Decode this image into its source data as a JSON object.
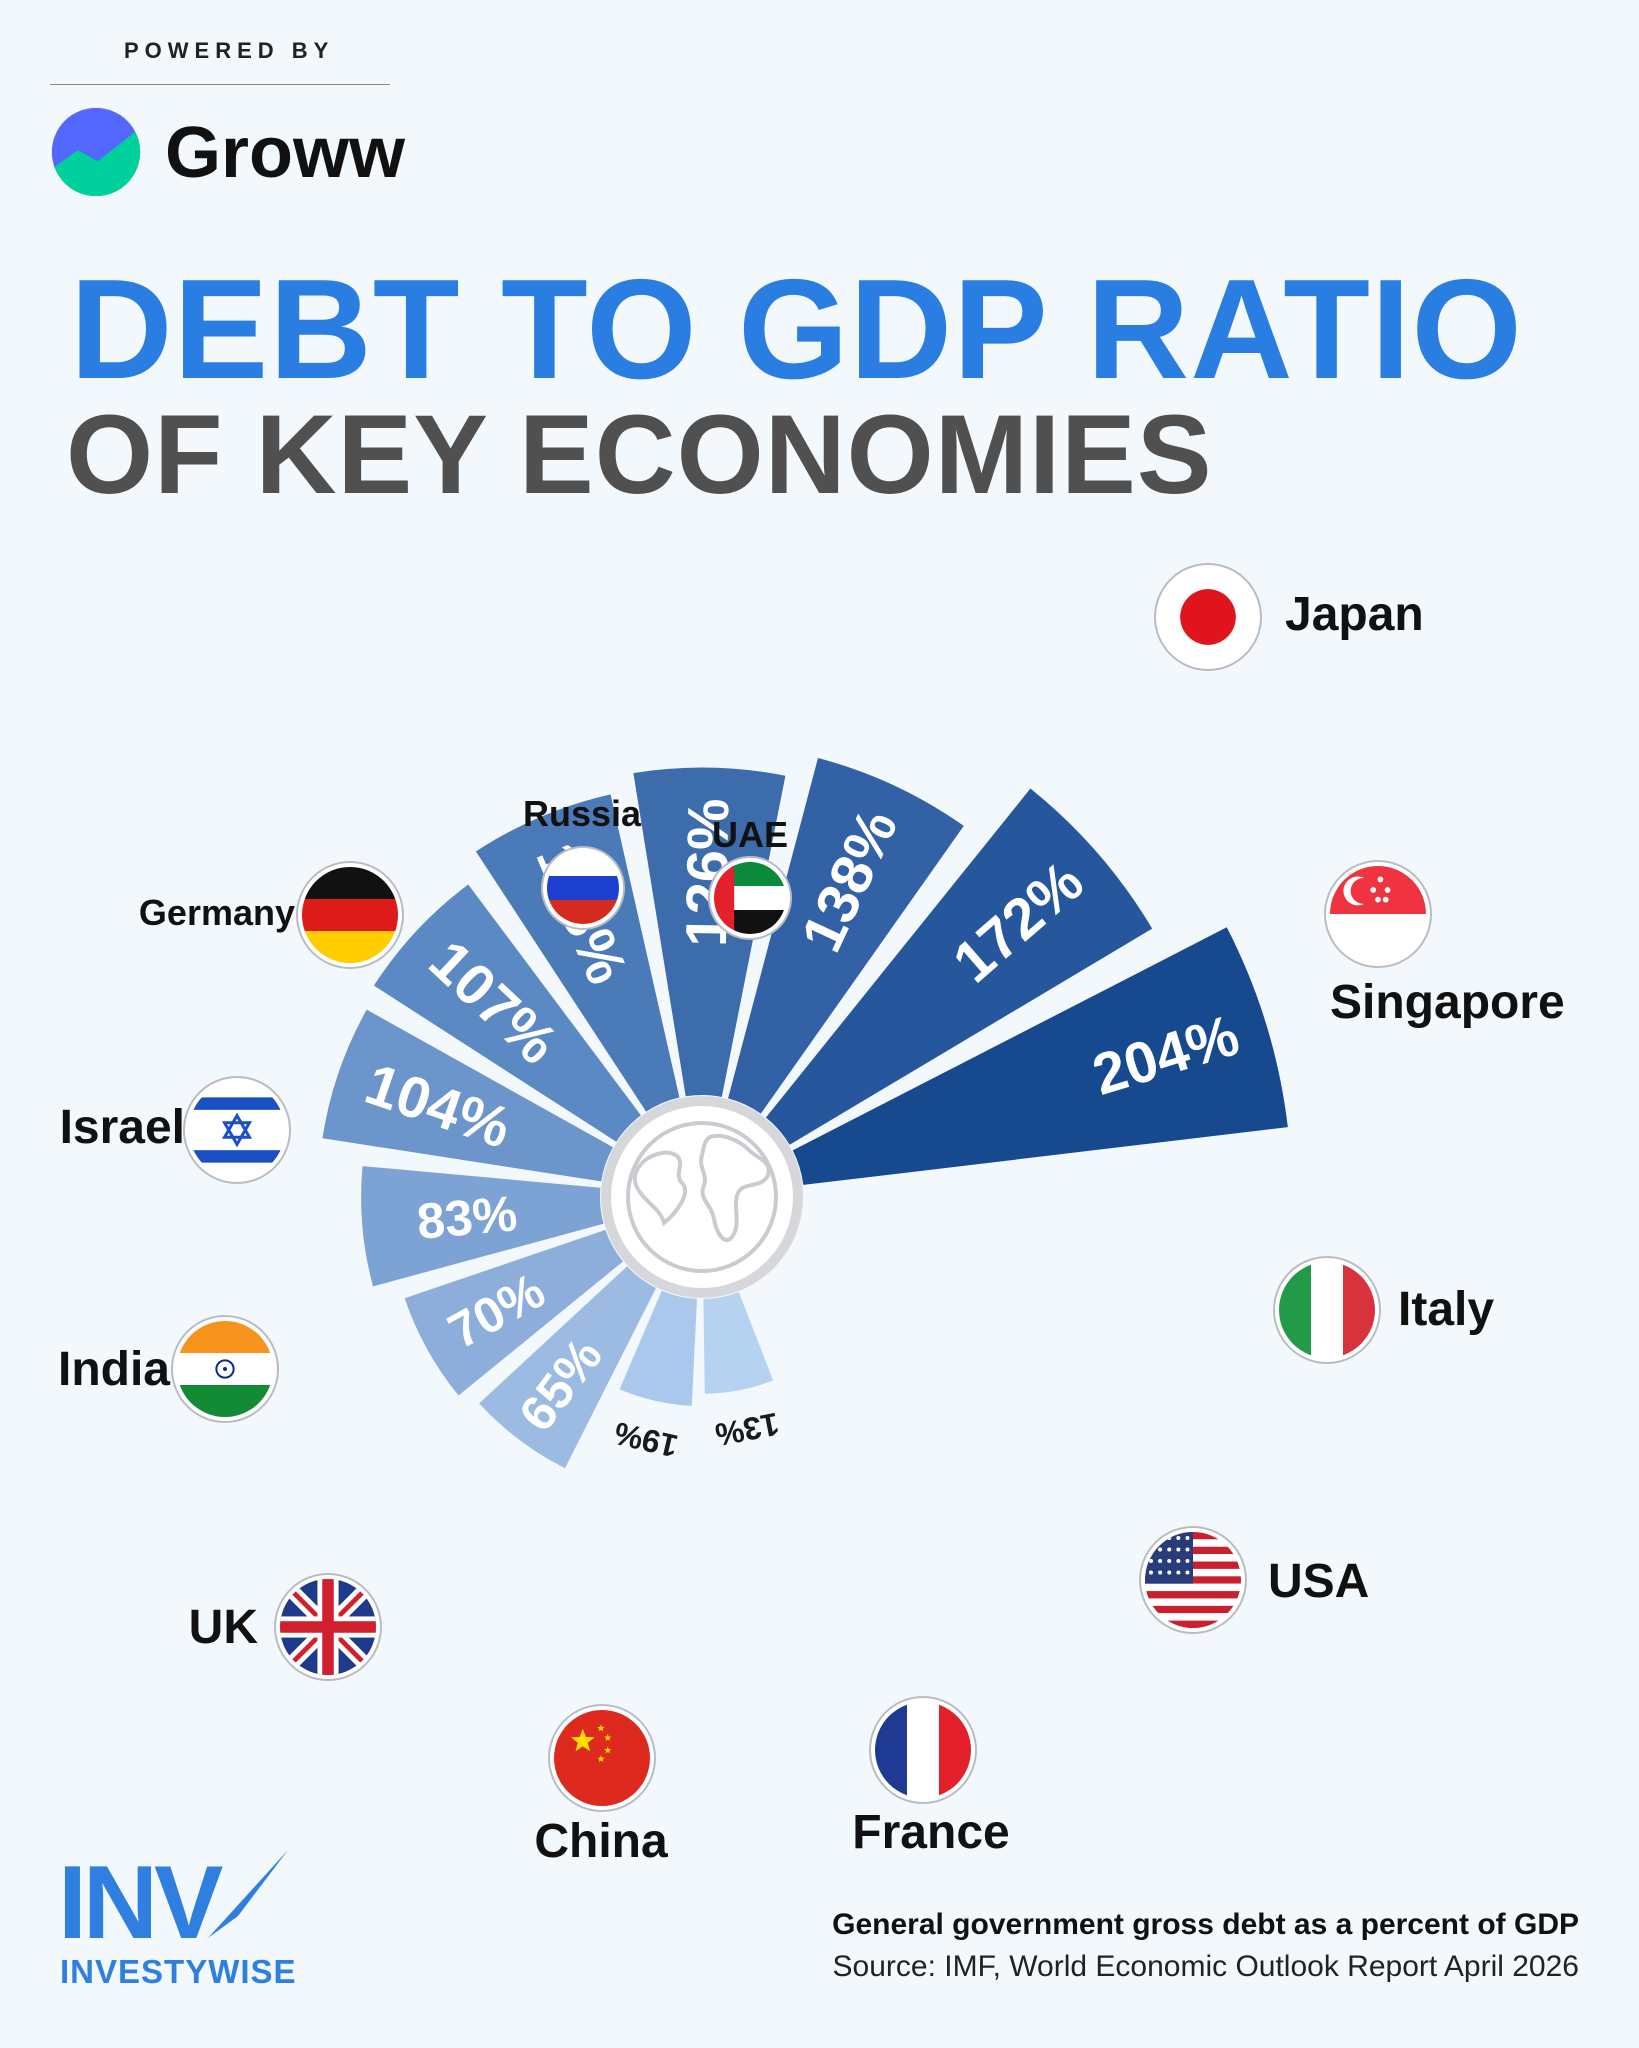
{
  "branding": {
    "powered_by": "POWERED BY",
    "groww_name": "Groww",
    "investywise_mark": "INV",
    "investywise_name": "INVESTYWISE"
  },
  "title": {
    "line1": "DEBT TO GDP RATIO",
    "line2": "OF KEY ECONOMIES"
  },
  "chart_data": {
    "type": "bar",
    "layout": "radial",
    "categories": [
      "Japan",
      "Singapore",
      "Italy",
      "USA",
      "France",
      "China",
      "UK",
      "India",
      "Israel",
      "Germany",
      "Russia",
      "UAE"
    ],
    "values": [
      204,
      172,
      138,
      126,
      118,
      107,
      104,
      83,
      70,
      65,
      19,
      13
    ],
    "labels": [
      "204%",
      "172%",
      "138%",
      "126%",
      "118%",
      "107%",
      "104%",
      "83%",
      "70%",
      "65%",
      "19%",
      "13%"
    ],
    "unit": "%",
    "colors": [
      "#17498f",
      "#26579d",
      "#3261a6",
      "#3d6cac",
      "#4a7ab8",
      "#5b89c3",
      "#6b95cb",
      "#7ca3d4",
      "#8daedb",
      "#9bbbe2",
      "#a9c8ec",
      "#b6d2f1"
    ],
    "center_icon": "globe-icon",
    "flags": [
      "japan-flag-icon",
      "singapore-flag-icon",
      "italy-flag-icon",
      "usa-flag-icon",
      "france-flag-icon",
      "china-flag-icon",
      "uk-flag-icon",
      "india-flag-icon",
      "israel-flag-icon",
      "germany-flag-icon",
      "russia-flag-icon",
      "uae-flag-icon"
    ]
  },
  "footer": {
    "note": "General government gross debt as a percent of GDP",
    "source": "Source: IMF, World Economic Outlook Report April 2026"
  }
}
